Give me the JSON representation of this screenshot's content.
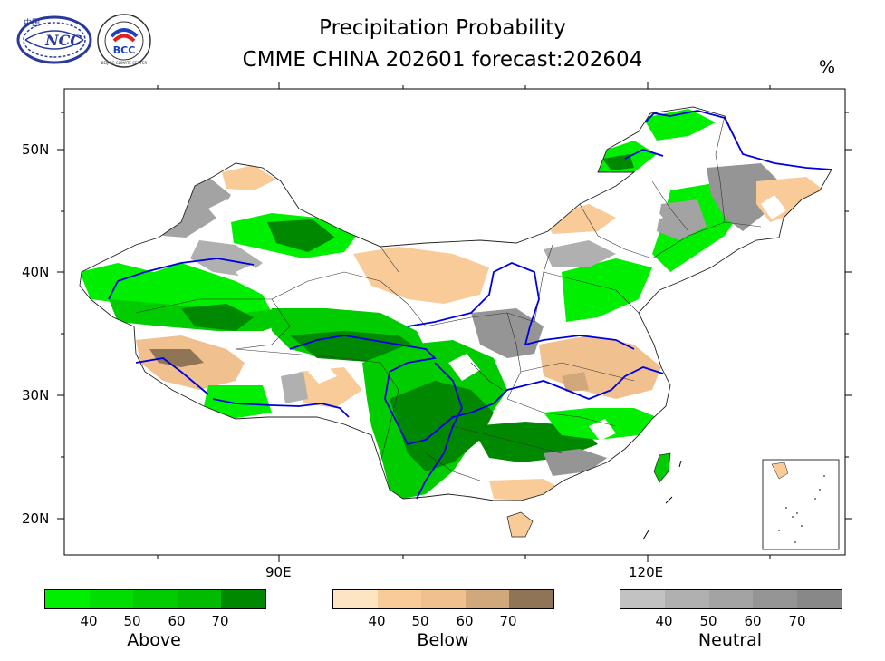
{
  "header": {
    "title_line1": "Precipitation Probability",
    "title_line2": "CMME CHINA 202601 forecast:202604",
    "unit": "%"
  },
  "logos": {
    "ncc": {
      "label": "NCC",
      "chars": "中国"
    },
    "bcc": {
      "label": "BCC",
      "ring_text": "BEIJING CLIMATE CENTER"
    }
  },
  "map": {
    "lat_labels": [
      "50N",
      "40N",
      "30N",
      "20N"
    ],
    "lon_labels": [
      "90E",
      "120E"
    ]
  },
  "legends": {
    "above": {
      "name": "Above",
      "ticks": [
        "40",
        "50",
        "60",
        "70"
      ],
      "colors": [
        "#00ee00",
        "#00dd00",
        "#00cc00",
        "#00bb00",
        "#008800"
      ]
    },
    "below": {
      "name": "Below",
      "ticks": [
        "40",
        "50",
        "60",
        "70"
      ],
      "colors": [
        "#fde5c4",
        "#f8cb99",
        "#f0c08e",
        "#d1a87c",
        "#8f7455"
      ]
    },
    "neutral": {
      "name": "Neutral",
      "ticks": [
        "40",
        "50",
        "60",
        "70"
      ],
      "colors": [
        "#c2c2c2",
        "#b0b0b0",
        "#a3a3a3",
        "#959595",
        "#888888"
      ]
    }
  }
}
